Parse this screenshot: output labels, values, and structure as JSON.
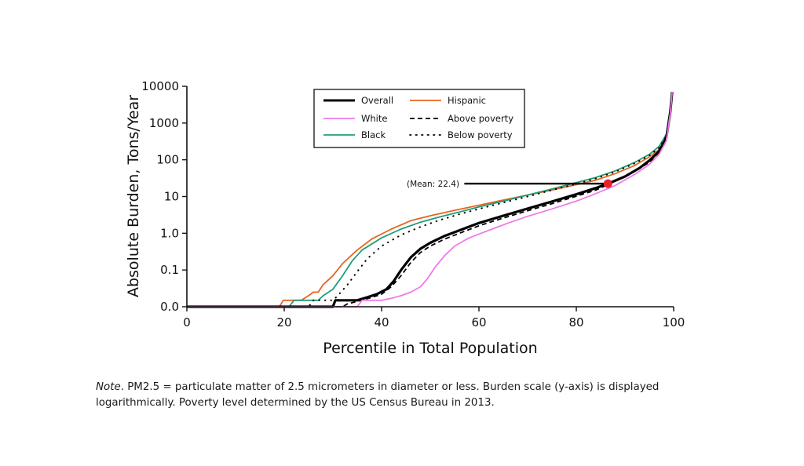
{
  "chart_data": {
    "type": "line",
    "title": "",
    "xlabel": "Percentile in Total Population",
    "ylabel": "Absolute Burden, Tons/Year",
    "xlim": [
      0,
      100
    ],
    "ylim": [
      0.01,
      10000
    ],
    "yscale": "log",
    "x_ticks": [
      0,
      20,
      40,
      60,
      80,
      100
    ],
    "x_tick_labels": [
      "0",
      "20",
      "40",
      "60",
      "80",
      "100"
    ],
    "y_ticks": [
      0.01,
      0.1,
      1,
      10,
      100,
      1000,
      10000
    ],
    "y_tick_labels": [
      "0.0",
      "0.1",
      "1.0",
      "10",
      "100",
      "1000",
      "10000"
    ],
    "grid": false,
    "legend_position": "top-center",
    "legend": [
      {
        "name": "Overall",
        "color": "#000000",
        "style": "solid-thick"
      },
      {
        "name": "Hispanic",
        "color": "#e8641e",
        "style": "solid"
      },
      {
        "name": "White",
        "color": "#f07ae8",
        "style": "solid"
      },
      {
        "name": "Above poverty",
        "color": "#000000",
        "style": "dashed"
      },
      {
        "name": "Black",
        "color": "#1e9e78",
        "style": "solid"
      },
      {
        "name": "Below poverty",
        "color": "#000000",
        "style": "dotted"
      }
    ],
    "series": [
      {
        "name": "Hispanic",
        "color": "#e8641e",
        "style": "solid",
        "x": [
          0,
          19,
          19.8,
          23.5,
          25,
          26,
          27,
          28,
          30,
          32,
          35,
          38,
          42,
          46,
          50,
          55,
          60,
          65,
          70,
          75,
          80,
          84,
          88,
          92,
          95,
          97,
          98.5,
          99.3,
          99.7
        ],
        "y": [
          0.01,
          0.01,
          0.015,
          0.015,
          0.02,
          0.025,
          0.025,
          0.04,
          0.07,
          0.15,
          0.35,
          0.7,
          1.3,
          2.2,
          3.0,
          4.2,
          5.8,
          8.0,
          11,
          15,
          21,
          28,
          42,
          70,
          120,
          190,
          400,
          2000,
          7000
        ]
      },
      {
        "name": "Black",
        "color": "#1e9e78",
        "style": "solid",
        "x": [
          0,
          21,
          22,
          27,
          28,
          30,
          32,
          34,
          36,
          40,
          44,
          48,
          52,
          56,
          60,
          65,
          70,
          75,
          80,
          84,
          88,
          92,
          95,
          97,
          98.5,
          99.3,
          99.7
        ],
        "y": [
          0.01,
          0.01,
          0.015,
          0.015,
          0.02,
          0.03,
          0.07,
          0.18,
          0.35,
          0.75,
          1.3,
          2.0,
          2.8,
          3.8,
          5.2,
          7.5,
          11,
          16,
          24,
          33,
          50,
          85,
          140,
          230,
          500,
          2000,
          7000
        ]
      },
      {
        "name": "Below poverty",
        "color": "#000000",
        "style": "dotted",
        "x": [
          0,
          25,
          26,
          30,
          31,
          33,
          35,
          37,
          40,
          44,
          48,
          52,
          56,
          60,
          65,
          70,
          75,
          80,
          84,
          88,
          92,
          95,
          97,
          98.5,
          99.3,
          99.7
        ],
        "y": [
          0.01,
          0.01,
          0.015,
          0.015,
          0.02,
          0.04,
          0.09,
          0.2,
          0.45,
          0.9,
          1.5,
          2.3,
          3.3,
          4.6,
          6.8,
          10,
          15,
          22,
          31,
          47,
          80,
          130,
          210,
          450,
          2000,
          7000
        ]
      },
      {
        "name": "Overall",
        "color": "#000000",
        "style": "solid-thick",
        "x": [
          0,
          30,
          30.5,
          35,
          37,
          39,
          41,
          42.5,
          44,
          46,
          48,
          50,
          53,
          56,
          60,
          65,
          70,
          75,
          80,
          84,
          86.5,
          90,
          93,
          95,
          97,
          98.5,
          99.3,
          99.7
        ],
        "y": [
          0.01,
          0.01,
          0.015,
          0.015,
          0.018,
          0.022,
          0.03,
          0.05,
          0.1,
          0.22,
          0.38,
          0.55,
          0.85,
          1.2,
          1.9,
          3.0,
          4.7,
          7.3,
          11.5,
          17,
          22.4,
          35,
          60,
          95,
          170,
          400,
          2000,
          7000
        ]
      },
      {
        "name": "Above poverty",
        "color": "#000000",
        "style": "dashed",
        "x": [
          0,
          32,
          33,
          35,
          38,
          40,
          42,
          44,
          46,
          48,
          50,
          53,
          56,
          60,
          65,
          70,
          75,
          80,
          84,
          88,
          92,
          95,
          97,
          98.5,
          99.3,
          99.7
        ],
        "y": [
          0.01,
          0.01,
          0.012,
          0.014,
          0.018,
          0.022,
          0.035,
          0.07,
          0.16,
          0.3,
          0.45,
          0.7,
          1.0,
          1.6,
          2.6,
          4.1,
          6.4,
          10.2,
          15,
          26,
          50,
          85,
          160,
          380,
          2000,
          7000
        ]
      },
      {
        "name": "White",
        "color": "#f07ae8",
        "style": "solid",
        "x": [
          0,
          35,
          36,
          40,
          42,
          44,
          46,
          48,
          49.5,
          51,
          53,
          55,
          58,
          62,
          66,
          70,
          75,
          80,
          84,
          88,
          92,
          95,
          97,
          98.5,
          99.3,
          99.7
        ],
        "y": [
          0.01,
          0.01,
          0.015,
          0.015,
          0.017,
          0.02,
          0.025,
          0.035,
          0.06,
          0.12,
          0.25,
          0.45,
          0.75,
          1.2,
          1.9,
          2.9,
          4.6,
          7.5,
          12,
          20,
          40,
          75,
          140,
          330,
          1800,
          7000
        ]
      }
    ],
    "annotations": [
      {
        "text": "(Mean: 22.4)",
        "x_from": 57,
        "x_to": 86.5,
        "y": 22.4,
        "marker_color": "#e8232a"
      }
    ]
  },
  "note": {
    "label": "Note",
    "text": ". PM2.5 = particulate matter of 2.5 micrometers in diameter or less. Burden scale (y-axis) is displayed logarithmically. Poverty level determined by the US Census Bureau in 2013."
  }
}
